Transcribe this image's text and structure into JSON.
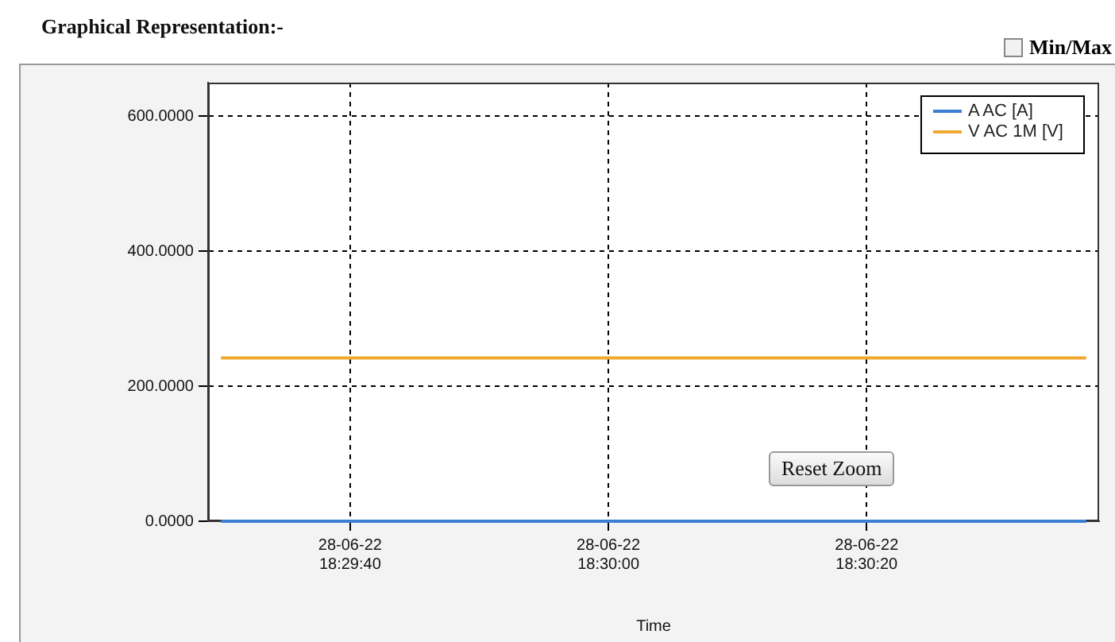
{
  "chart_data": {
    "type": "line",
    "title": "Graphical Representation:-",
    "xlabel": "Time",
    "annotations": [
      "Min/Max",
      "Reset Zoom"
    ],
    "xlim": [
      "--06-28T18:29:29",
      "--06-28T18:30:38"
    ],
    "xticks": [
      {
        "value": "--06-28T18:29:40",
        "label": "28-06-22\n18:29:40"
      },
      {
        "value": "--06-28T18:30:00",
        "label": "28-06-22\n18:30:00"
      },
      {
        "value": "--06-28T18:30:20",
        "label": "28-06-22\n18:30:20"
      }
    ],
    "ylim": [
      0,
      650
    ],
    "yticks": [
      {
        "value": 0,
        "label": "0.0000"
      },
      {
        "value": 200,
        "label": "200.0000"
      },
      {
        "value": 400,
        "label": "400.0000"
      },
      {
        "value": 600,
        "label": "600.0000"
      }
    ],
    "series": [
      {
        "name": "A AC [A]",
        "color": "#3b7fd4",
        "x": [
          "--06-28T18:29:30",
          "--06-28T18:30:37"
        ],
        "values": [
          0,
          0
        ]
      },
      {
        "name": "V AC 1M [V]",
        "color": "#f0a830",
        "x": [
          "--06-28T18:29:30",
          "--06-28T18:30:37"
        ],
        "values": [
          242,
          242
        ]
      }
    ],
    "grid": true,
    "legend": "top right",
    "marker": "none"
  }
}
